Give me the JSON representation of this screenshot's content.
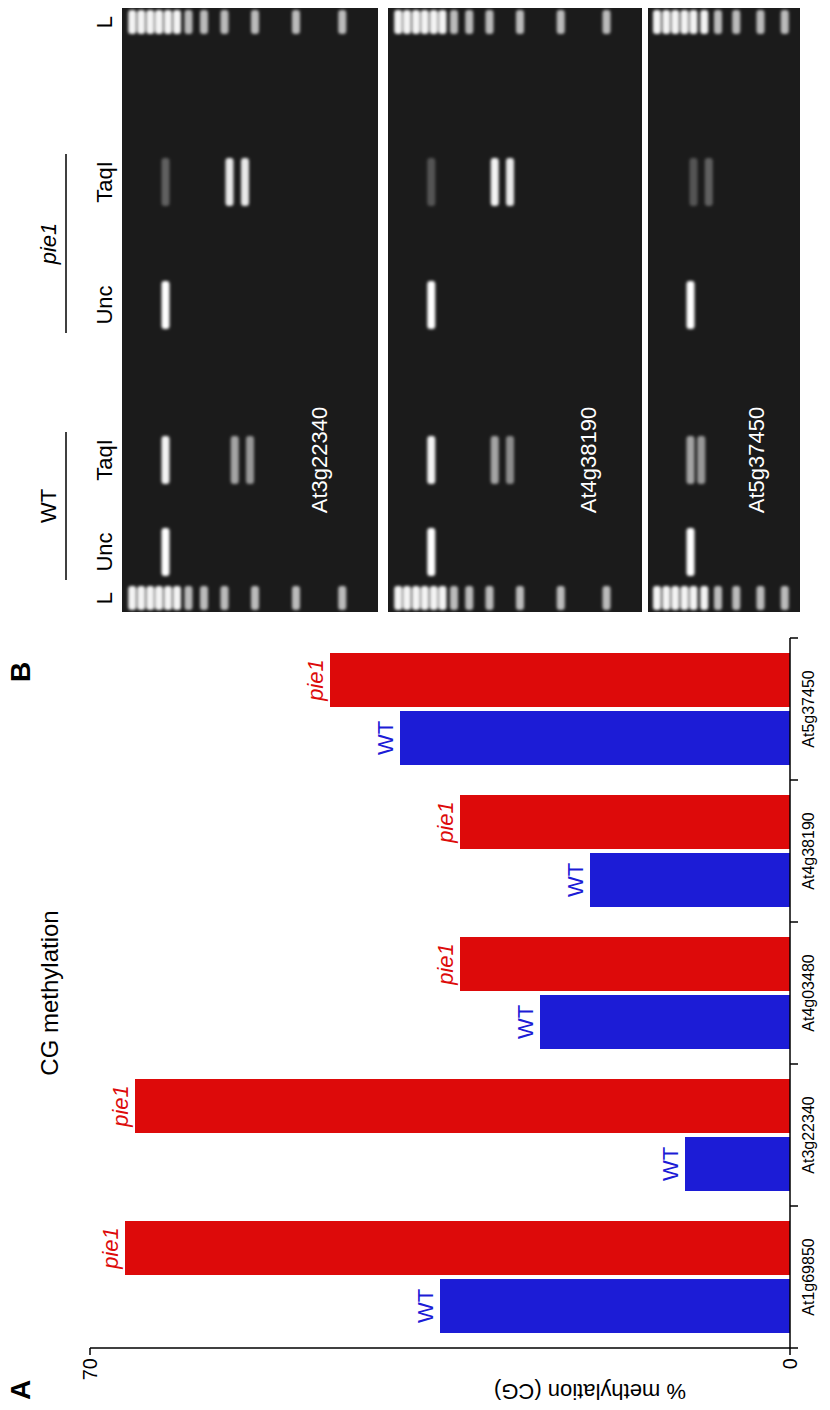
{
  "panel_labels": [
    "A",
    "B"
  ],
  "chart_data": {
    "type": "bar",
    "title": "CG methylation",
    "y_label": "% methylation (CG)",
    "categories": [
      "At1g69850",
      "At3g22340",
      "At4g03480",
      "At4g38190",
      "At5g37450"
    ],
    "series": [
      {
        "name": "WT",
        "color": "#1c1cd6",
        "values": [
          35,
          10.5,
          25,
          20,
          39
        ]
      },
      {
        "name": "pie1",
        "color": "#dd0a0a",
        "values": [
          66.5,
          65.5,
          33,
          33,
          46
        ]
      }
    ],
    "ylim": [
      0,
      70
    ],
    "yticks": [
      0,
      70
    ],
    "grid": false
  },
  "gel": {
    "ladder_label": "L",
    "groups": [
      {
        "label": "WT",
        "lanes": [
          "Unc",
          "TaqI"
        ]
      },
      {
        "label": "pie1",
        "lanes": [
          "Unc",
          "TaqI"
        ]
      }
    ],
    "genes": [
      "At3g22340",
      "At4g38190",
      "At5g37450"
    ]
  }
}
